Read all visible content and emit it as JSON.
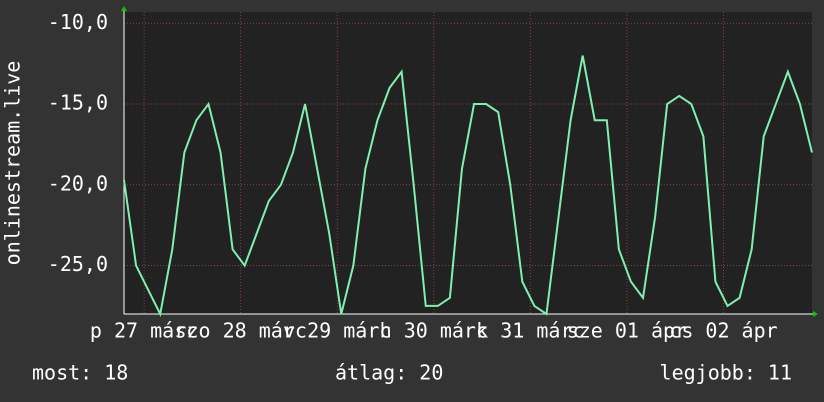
{
  "chart_data": {
    "type": "line",
    "y_label": "onlinestream.live",
    "x": [
      0,
      3,
      6,
      9,
      12,
      15,
      18,
      21,
      24,
      27,
      30,
      33,
      36,
      39,
      42,
      45,
      48,
      51,
      54,
      57,
      60,
      63,
      66,
      69,
      72,
      75,
      78,
      81,
      84,
      87,
      90,
      93,
      96,
      99,
      102,
      105,
      108,
      111,
      114,
      117,
      120,
      123,
      126,
      129,
      132,
      135,
      138,
      141,
      144,
      147,
      150,
      153,
      156,
      159,
      162,
      165,
      168,
      171
    ],
    "series": [
      {
        "name": "onlinestream.live",
        "color": "#7ef0b0",
        "values": [
          -19.7,
          -25,
          -26.5,
          -28,
          -24,
          -18,
          -16,
          -15,
          -18,
          -24,
          -25,
          -23,
          -21,
          -20,
          -18,
          -15,
          -19,
          -23,
          -28,
          -25,
          -19,
          -16,
          -14,
          -13,
          -20,
          -27.5,
          -27.5,
          -27,
          -19,
          -15,
          -15,
          -15.5,
          -20,
          -26,
          -27.5,
          -28,
          -22,
          -16,
          -12,
          -16,
          -16,
          -24,
          -26,
          -27,
          -22,
          -15,
          -14.5,
          -15,
          -17,
          -26,
          -27.5,
          -27,
          -24,
          -17,
          -15,
          -13,
          -15,
          -18
        ]
      }
    ],
    "xlim": [
      0,
      171
    ],
    "xticks": [
      {
        "value": 5,
        "label": "p 27 márc"
      },
      {
        "value": 29,
        "label": "szo 28 márc"
      },
      {
        "value": 53,
        "label": "v 29 márc"
      },
      {
        "value": 77,
        "label": "h 30 márc"
      },
      {
        "value": 101,
        "label": "k 31 márc"
      },
      {
        "value": 125,
        "label": "sze 01 ápr"
      },
      {
        "value": 149,
        "label": "cs 02 ápr"
      }
    ],
    "ylim": [
      -28,
      -9.3
    ],
    "yticks": [
      {
        "value": -25,
        "label": "-25,0"
      },
      {
        "value": -20,
        "label": "-20,0"
      },
      {
        "value": -15,
        "label": "-15,0"
      },
      {
        "value": -10,
        "label": "-10,0"
      }
    ],
    "grid": true,
    "footer": {
      "current": "most: 18",
      "average": "átlag: 20",
      "best": "legjobb: 11"
    }
  }
}
